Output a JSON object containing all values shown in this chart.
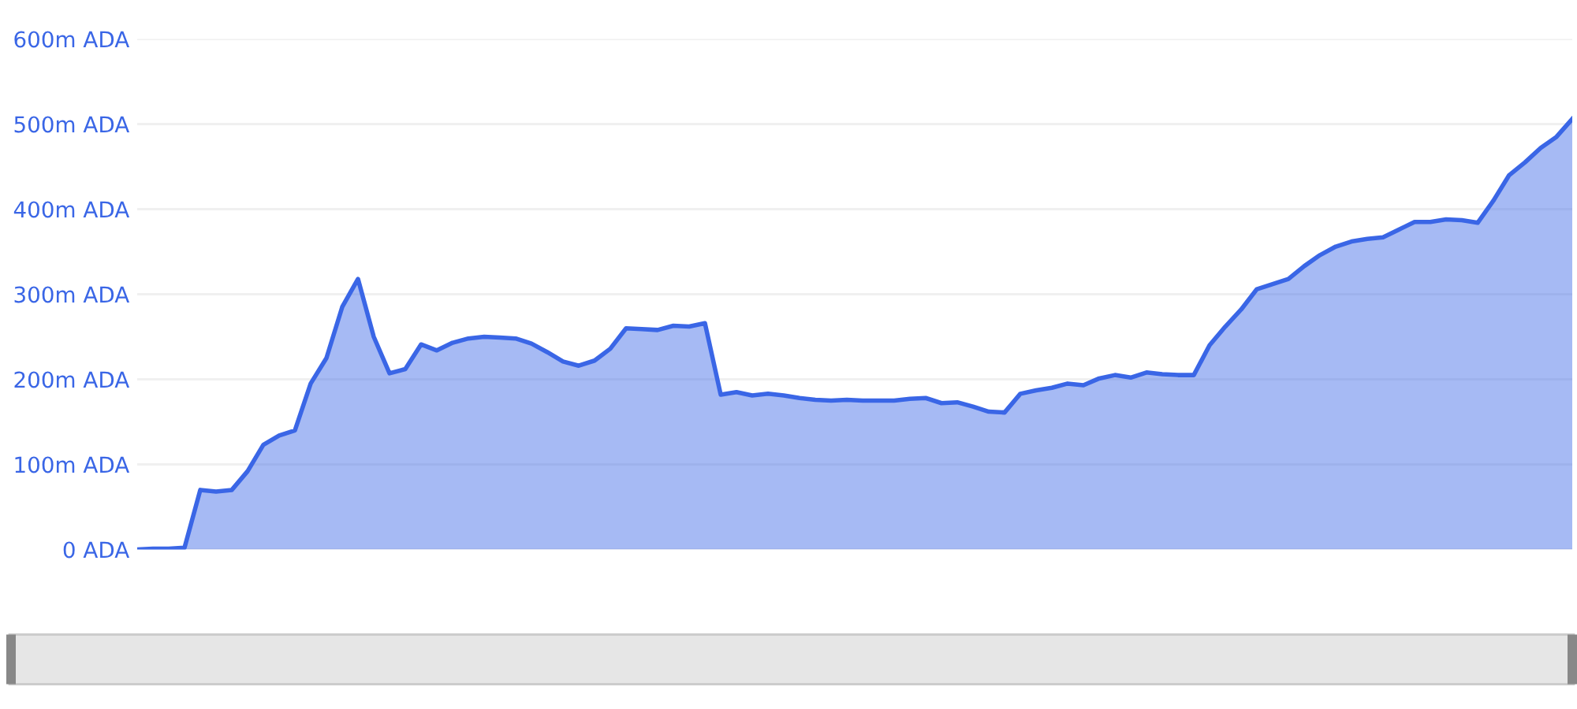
{
  "chart_data": {
    "type": "area",
    "categories": [
      null,
      null,
      null,
      null,
      null,
      null,
      null,
      null,
      null,
      null,
      null,
      null,
      null,
      null,
      null,
      null,
      null,
      null,
      null,
      null,
      null,
      null,
      null,
      null,
      null,
      null,
      null,
      null,
      null,
      null,
      null,
      null,
      null,
      null,
      null,
      null,
      null,
      null,
      null,
      null,
      null,
      null,
      null,
      null,
      null,
      null,
      null,
      null,
      null,
      null,
      null,
      null,
      null,
      null,
      null,
      null,
      null,
      null,
      null,
      null,
      null,
      null,
      null,
      null,
      null,
      null,
      null,
      null,
      null,
      null,
      null,
      null,
      null,
      null,
      null,
      null,
      null,
      null,
      null,
      null,
      null,
      null,
      null,
      null,
      null,
      null,
      null,
      null,
      null,
      null,
      null,
      null
    ],
    "series": [
      {
        "color": "#3a66e6",
        "values": [
          0,
          1,
          1,
          2,
          70,
          68,
          70,
          92,
          123,
          134,
          140,
          195,
          225,
          285,
          318,
          250,
          207,
          212,
          241,
          234,
          243,
          248,
          250,
          249,
          248,
          242,
          232,
          221,
          216,
          222,
          236,
          260,
          259,
          258,
          263,
          262,
          266,
          182,
          185,
          181,
          183,
          181,
          178,
          176,
          175,
          176,
          175,
          175,
          175,
          177,
          178,
          172,
          173,
          168,
          162,
          161,
          183,
          187,
          190,
          195,
          193,
          201,
          205,
          202,
          208,
          206,
          205,
          205,
          240,
          262,
          282,
          306,
          312,
          318,
          333,
          346,
          356,
          362,
          365,
          367,
          376,
          385,
          385,
          388,
          387,
          384,
          410,
          440,
          455,
          472,
          485,
          506
        ]
      }
    ],
    "ylim": [
      0,
      600
    ],
    "yticks": [
      {
        "value": 0,
        "label": "0 ADA"
      },
      {
        "value": 100,
        "label": "100m ADA"
      },
      {
        "value": 200,
        "label": "200m ADA"
      },
      {
        "value": 300,
        "label": "300m ADA"
      },
      {
        "value": 400,
        "label": "400m ADA"
      },
      {
        "value": 500,
        "label": "500m ADA"
      },
      {
        "value": 600,
        "label": "600m ADA"
      }
    ],
    "grid": "y",
    "legend": false
  }
}
